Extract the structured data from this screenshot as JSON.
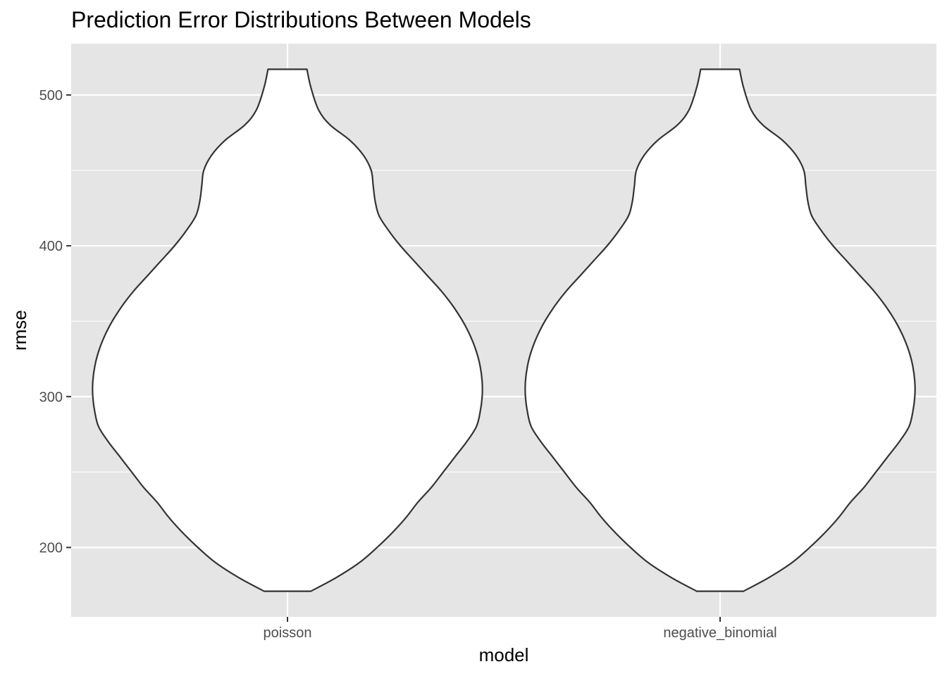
{
  "chart_data": {
    "type": "violin",
    "title": "Prediction Error Distributions Between Models",
    "xlabel": "model",
    "ylabel": "rmse",
    "categories": [
      "poisson",
      "negative_binomial"
    ],
    "ylim": [
      154,
      534
    ],
    "y_ticks": [
      200,
      300,
      400,
      500
    ],
    "y_tick_labels": [
      "200",
      "300",
      "400",
      "500"
    ],
    "grid": true,
    "legend": "none",
    "colors": {
      "panel": "#e5e5e5",
      "grid": "#ffffff",
      "fill": "#ffffff",
      "outline": "#333333",
      "tick_label": "#4d4d4d"
    },
    "series": [
      {
        "category": "poisson",
        "min": 171,
        "max": 517,
        "density_profile": [
          [
            517,
            0.1
          ],
          [
            505,
            0.12
          ],
          [
            490,
            0.16
          ],
          [
            480,
            0.22
          ],
          [
            470,
            0.32
          ],
          [
            460,
            0.39
          ],
          [
            450,
            0.43
          ],
          [
            440,
            0.44
          ],
          [
            430,
            0.45
          ],
          [
            420,
            0.47
          ],
          [
            410,
            0.52
          ],
          [
            400,
            0.58
          ],
          [
            390,
            0.65
          ],
          [
            380,
            0.72
          ],
          [
            370,
            0.79
          ],
          [
            360,
            0.85
          ],
          [
            350,
            0.9
          ],
          [
            340,
            0.94
          ],
          [
            330,
            0.97
          ],
          [
            320,
            0.99
          ],
          [
            310,
            1.0
          ],
          [
            300,
            1.0
          ],
          [
            290,
            0.99
          ],
          [
            280,
            0.97
          ],
          [
            270,
            0.92
          ],
          [
            260,
            0.86
          ],
          [
            250,
            0.8
          ],
          [
            240,
            0.74
          ],
          [
            230,
            0.67
          ],
          [
            220,
            0.61
          ],
          [
            210,
            0.54
          ],
          [
            200,
            0.46
          ],
          [
            190,
            0.37
          ],
          [
            180,
            0.25
          ],
          [
            171,
            0.12
          ]
        ]
      },
      {
        "category": "negative_binomial",
        "min": 171,
        "max": 517,
        "density_profile": [
          [
            517,
            0.1
          ],
          [
            505,
            0.12
          ],
          [
            490,
            0.16
          ],
          [
            480,
            0.22
          ],
          [
            470,
            0.32
          ],
          [
            460,
            0.39
          ],
          [
            450,
            0.43
          ],
          [
            440,
            0.44
          ],
          [
            430,
            0.45
          ],
          [
            420,
            0.47
          ],
          [
            410,
            0.52
          ],
          [
            400,
            0.58
          ],
          [
            390,
            0.65
          ],
          [
            380,
            0.72
          ],
          [
            370,
            0.79
          ],
          [
            360,
            0.85
          ],
          [
            350,
            0.9
          ],
          [
            340,
            0.94
          ],
          [
            330,
            0.97
          ],
          [
            320,
            0.99
          ],
          [
            310,
            1.0
          ],
          [
            300,
            1.0
          ],
          [
            290,
            0.99
          ],
          [
            280,
            0.97
          ],
          [
            270,
            0.92
          ],
          [
            260,
            0.86
          ],
          [
            250,
            0.8
          ],
          [
            240,
            0.74
          ],
          [
            230,
            0.67
          ],
          [
            220,
            0.61
          ],
          [
            210,
            0.54
          ],
          [
            200,
            0.46
          ],
          [
            190,
            0.37
          ],
          [
            180,
            0.25
          ],
          [
            171,
            0.12
          ]
        ]
      }
    ]
  }
}
